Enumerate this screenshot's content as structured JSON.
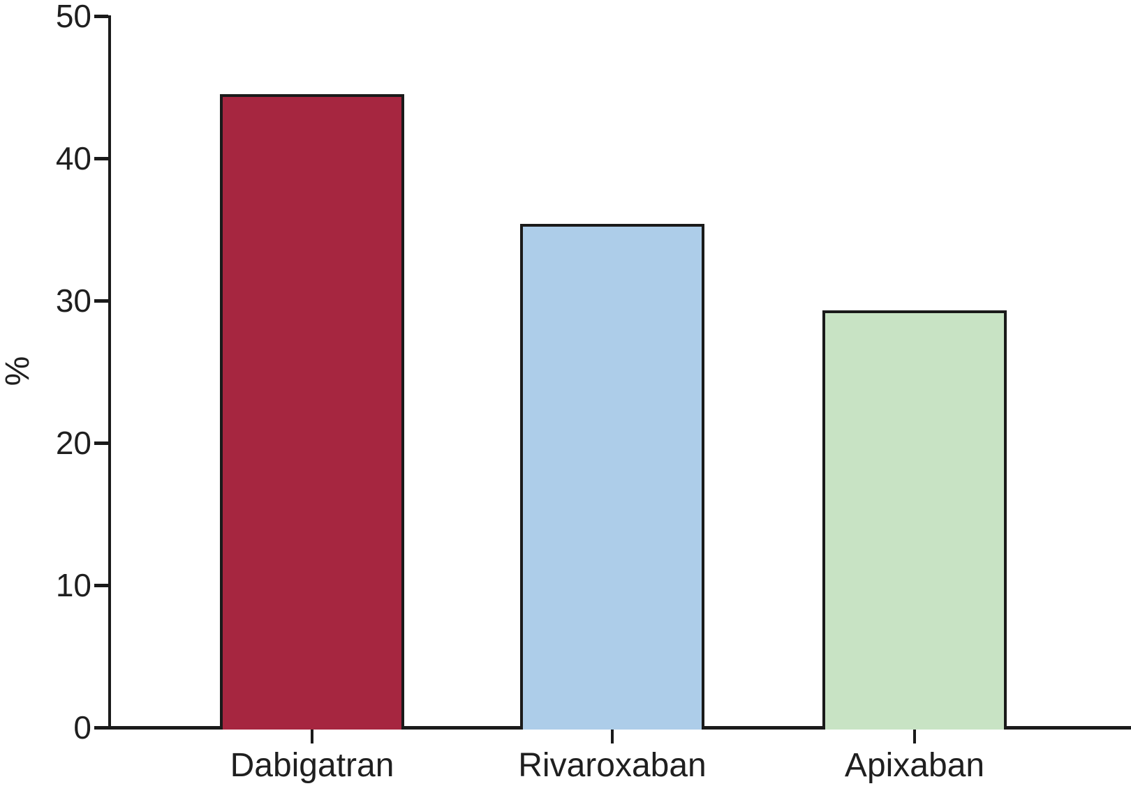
{
  "chart_data": {
    "type": "bar",
    "title": "",
    "categories": [
      "Dabigatran",
      "Rivaroxaban",
      "Apixaban"
    ],
    "values": [
      44.5,
      35.4,
      29.3
    ],
    "bar_colors": [
      "#A62640",
      "#ADCDE9",
      "#C8E3C4"
    ],
    "bar_border_color": "#1A1A1A",
    "axis_color": "#1A1A1A",
    "xlabel": "",
    "ylabel": "%",
    "ylim": [
      0,
      50
    ],
    "yticks": [
      0,
      10,
      20,
      30,
      40,
      50
    ],
    "grid": false,
    "legend": "none"
  }
}
